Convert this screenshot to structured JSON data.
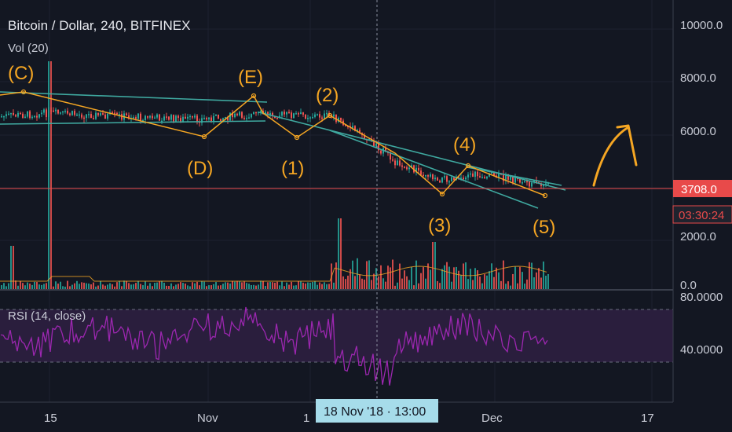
{
  "header": {
    "title": "Bitcoin / Dollar, 240, BITFINEX",
    "volume_label": "Vol (20)"
  },
  "rsi_panel": {
    "label": "RSI (14, close)"
  },
  "price_axis": {
    "ticks": [
      "10000.0",
      "8000.0",
      "6000.0",
      "2000.0",
      "0.0"
    ],
    "last_price": "3708.0",
    "countdown": "03:30:24"
  },
  "rsi_axis": {
    "ticks": [
      "80.0000",
      "40.0000"
    ]
  },
  "time_axis": {
    "ticks": [
      "15",
      "Nov",
      "1",
      "Dec",
      "17"
    ],
    "crosshair_label": "18 Nov '18 · 13:00"
  },
  "wave_labels": [
    "(C)",
    "(D)",
    "(E)",
    "(1)",
    "(2)",
    "(3)",
    "(4)",
    "(5)"
  ],
  "colors": {
    "background": "#131722",
    "up_candle": "#26a69a",
    "down_candle": "#ef5350",
    "annotation": "#f5a623",
    "trendline": "#3fa9a0",
    "rsi_line": "#9c27b0",
    "rsi_band": "#2a1e3d",
    "last_price_badge": "#e84a4a",
    "crosshair_badge": "#a6dcea"
  },
  "chart_data": [
    {
      "type": "candlestick",
      "title": "Bitcoin / Dollar, 240, BITFINEX",
      "ylim": [
        0,
        10500
      ],
      "last_price": 3708.0,
      "wave_points": [
        {
          "label": "(C)",
          "price": 7300
        },
        {
          "label": "(D)",
          "price": 5600
        },
        {
          "label": "(E)",
          "price": 7200
        },
        {
          "label": "(1)",
          "price": 5700
        },
        {
          "label": "(2)",
          "price": 6500
        },
        {
          "label": "(3)",
          "price": 3500
        },
        {
          "label": "(4)",
          "price": 4600
        },
        {
          "label": "(5)",
          "price": 3500
        }
      ]
    },
    {
      "type": "bar",
      "title": "Vol (20)"
    },
    {
      "type": "line",
      "title": "RSI (14, close)",
      "ylim": [
        20,
        85
      ],
      "bands": [
        30,
        70
      ]
    }
  ]
}
